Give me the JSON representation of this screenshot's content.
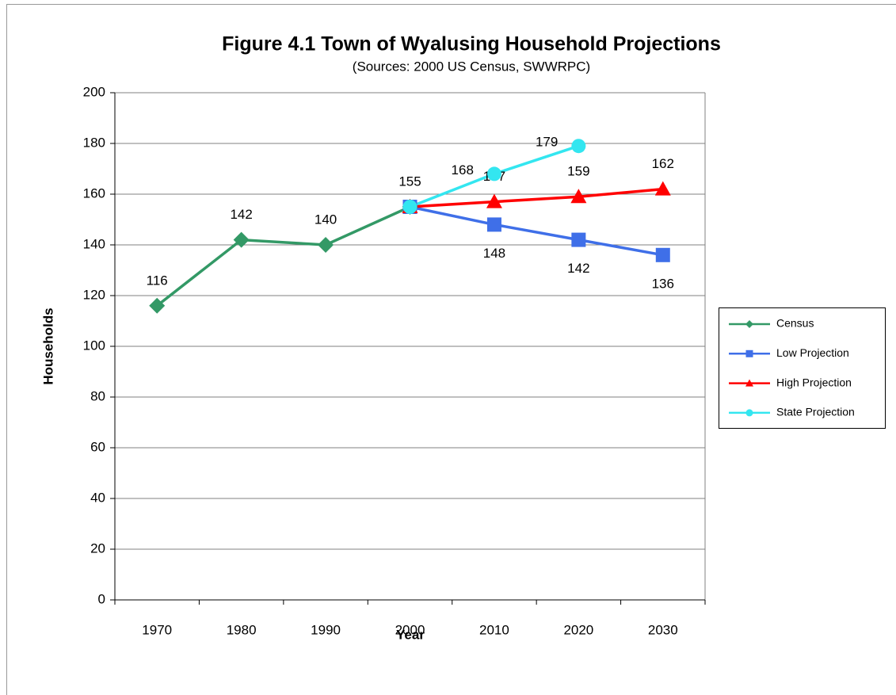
{
  "chart_data": {
    "type": "line",
    "title": "Figure 4.1 Town of Wyalusing Household Projections",
    "subtitle": "(Sources:  2000 US Census, SWWRPC)",
    "x_label": "Year",
    "y_label": "Households",
    "categories": [
      "1970",
      "1980",
      "1990",
      "2000",
      "2010",
      "2020",
      "2030"
    ],
    "series": [
      {
        "name": "Census",
        "color": "#339966",
        "marker": "diamond",
        "label_position": "above",
        "values": [
          116,
          142,
          140,
          155,
          null,
          null,
          null
        ]
      },
      {
        "name": "Low Projection",
        "color": "#3f6fe8",
        "marker": "square",
        "label_position": "below",
        "values": [
          null,
          null,
          null,
          155,
          148,
          142,
          136
        ]
      },
      {
        "name": "High Projection",
        "color": "#ff0000",
        "marker": "triangle",
        "label_position": "above",
        "values": [
          null,
          null,
          null,
          155,
          157,
          159,
          162
        ]
      },
      {
        "name": "State Projection",
        "color": "#33e6f0",
        "marker": "circle",
        "label_position": "left",
        "values": [
          null,
          null,
          null,
          155,
          168,
          179,
          null
        ]
      }
    ],
    "ylim": [
      0,
      200
    ],
    "yticks": [
      0,
      20,
      40,
      60,
      80,
      100,
      120,
      140,
      160,
      180,
      200
    ],
    "grid": true,
    "legend": "right"
  }
}
